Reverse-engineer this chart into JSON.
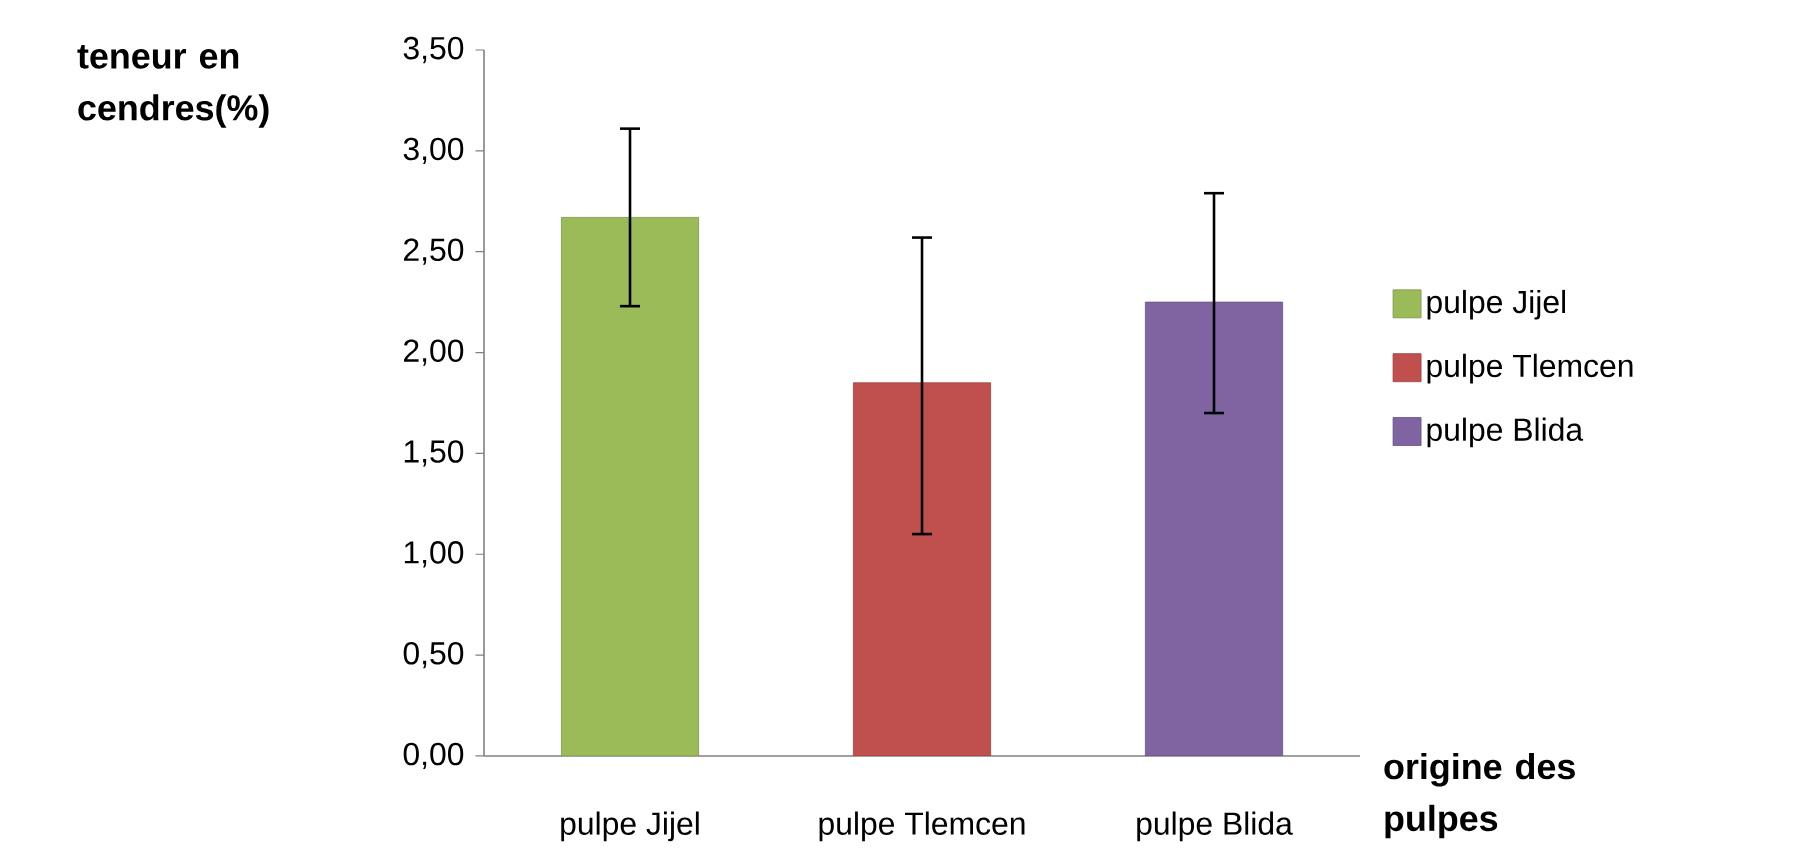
{
  "chart_data": {
    "type": "bar",
    "ylabel": "teneur en cendres(%)",
    "xlabel": "origine des pulpes",
    "categories": [
      "pulpe Jijel",
      "pulpe Tlemcen",
      "pulpe Blida"
    ],
    "series": [
      {
        "name": "pulpe Jijel",
        "color": "#9bbb59",
        "values": [
          2.67,
          null,
          null
        ],
        "errors": [
          [
            2.23,
            3.11
          ],
          null,
          null
        ]
      },
      {
        "name": "pulpe Tlemcen",
        "color": "#c0504d",
        "values": [
          null,
          1.85,
          null
        ],
        "errors": [
          null,
          [
            1.1,
            2.57
          ],
          null
        ]
      },
      {
        "name": "pulpe Blida",
        "color": "#8064a2",
        "values": [
          null,
          null,
          2.25
        ],
        "errors": [
          null,
          null,
          [
            1.7,
            2.79
          ]
        ]
      }
    ],
    "ylim": [
      0,
      3.5
    ],
    "yticks": [
      {
        "value": 0,
        "label": "0,00"
      },
      {
        "value": 0.5,
        "label": "0,50"
      },
      {
        "value": 1,
        "label": "1,00"
      },
      {
        "value": 1.5,
        "label": "1,50"
      },
      {
        "value": 2,
        "label": "2,00"
      },
      {
        "value": 2.5,
        "label": "2,50"
      },
      {
        "value": 3,
        "label": "3,00"
      },
      {
        "value": 3.5,
        "label": "3,50"
      }
    ],
    "grid": false,
    "legend": "right"
  }
}
